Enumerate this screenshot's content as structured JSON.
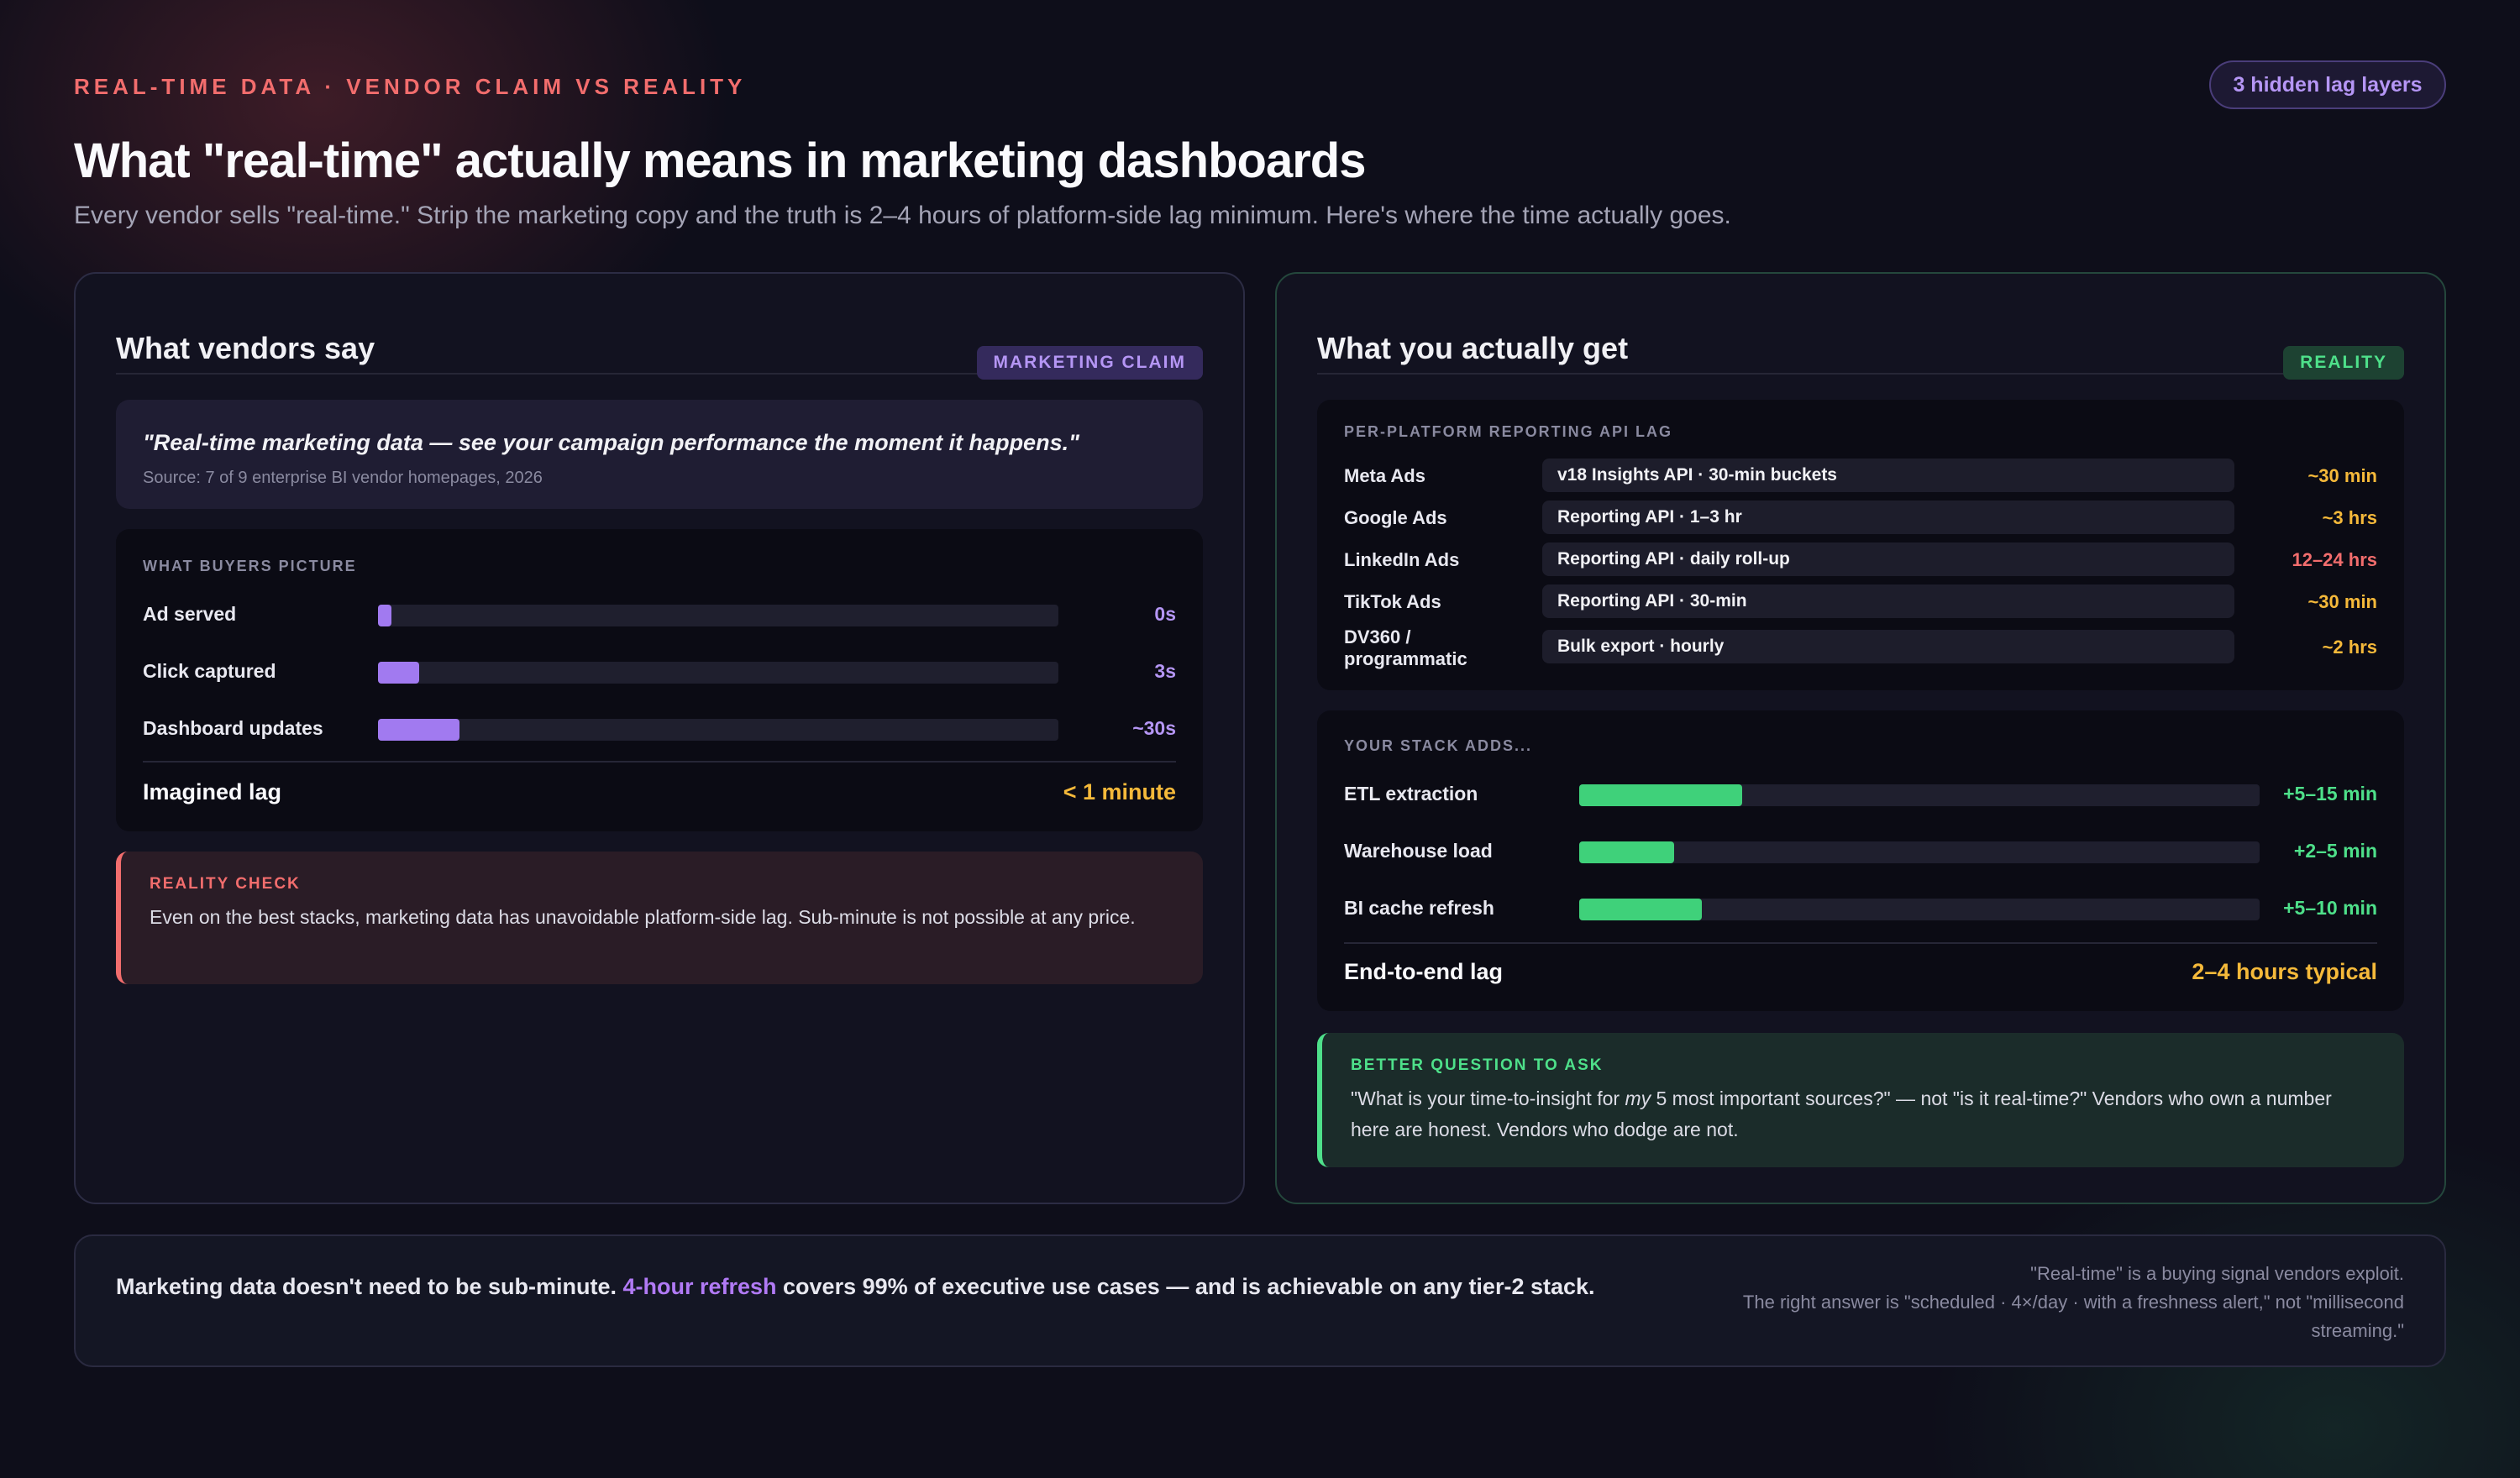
{
  "header": {
    "eyebrow": "REAL-TIME DATA · VENDOR CLAIM VS REALITY",
    "badge": "3 hidden lag layers",
    "title": "What \"real-time\" actually means in marketing dashboards",
    "subtitle": "Every vendor sells \"real-time.\" Strip the marketing copy and the truth is 2–4 hours of platform-side lag minimum. Here's where the time actually goes."
  },
  "vendor_panel": {
    "title": "What vendors say",
    "tag": "MARKETING CLAIM",
    "quote": "\"Real-time marketing data — see your campaign performance the moment it happens.\"",
    "source": "Source: 7 of 9 enterprise BI vendor homepages, 2026",
    "buyers_label": "WHAT BUYERS PICTURE",
    "bars": [
      {
        "label": "Ad served",
        "value": "0s",
        "fill_fraction": 0.02
      },
      {
        "label": "Click captured",
        "value": "3s",
        "fill_fraction": 0.06
      },
      {
        "label": "Dashboard updates",
        "value": "~30s",
        "fill_fraction": 0.12
      }
    ],
    "summary_label": "Imagined lag",
    "summary_value": "< 1 minute",
    "callout_label": "REALITY CHECK",
    "callout_text": "Even on the best stacks, marketing data has unavoidable platform-side lag. Sub-minute is not possible at any price."
  },
  "reality_panel": {
    "title": "What you actually get",
    "tag": "REALITY",
    "api_label": "PER-PLATFORM REPORTING API LAG",
    "platforms": [
      {
        "name": "Meta Ads",
        "api": "v18 Insights API · 30-min buckets",
        "lag": "~30 min",
        "severity": "amber"
      },
      {
        "name": "Google Ads",
        "api": "Reporting API · 1–3 hr",
        "lag": "~3 hrs",
        "severity": "amber"
      },
      {
        "name": "LinkedIn Ads",
        "api": "Reporting API · daily roll-up",
        "lag": "12–24 hrs",
        "severity": "red"
      },
      {
        "name": "TikTok Ads",
        "api": "Reporting API · 30-min",
        "lag": "~30 min",
        "severity": "amber"
      },
      {
        "name": "DV360 / programmatic",
        "api": "Bulk export · hourly",
        "lag": "~2 hrs",
        "severity": "amber"
      }
    ],
    "stack_label": "YOUR STACK ADDS...",
    "stack": [
      {
        "label": "ETL extraction",
        "value": "+5–15 min",
        "fill_fraction": 0.24
      },
      {
        "label": "Warehouse load",
        "value": "+2–5 min",
        "fill_fraction": 0.14
      },
      {
        "label": "BI cache refresh",
        "value": "+5–10 min",
        "fill_fraction": 0.18
      }
    ],
    "summary_label": "End-to-end lag",
    "summary_value": "2–4 hours typical",
    "callout_label": "BETTER QUESTION TO ASK",
    "callout_text_before": "\"What is your time-to-insight for ",
    "callout_text_em": "my",
    "callout_text_after": " 5 most important sources?\" — not \"is it real-time?\" Vendors who own a number here are honest. Vendors who dodge are not."
  },
  "footer": {
    "text_before": "Marketing data doesn't need to be sub-minute. ",
    "highlight": "4-hour refresh",
    "text_after": " covers 99% of executive use cases — and is achievable on any tier-2 stack.",
    "note_line1": "\"Real-time\" is a buying signal vendors exploit.",
    "note_line2": "The right answer is \"scheduled · 4×/day · with a freshness alert,\" not \"millisecond streaming.\""
  },
  "colors": {
    "claim_accent": "#b17af5",
    "reality_accent": "#4ee08a",
    "warning_red": "#f26d6d",
    "amber": "#f5b93a"
  }
}
